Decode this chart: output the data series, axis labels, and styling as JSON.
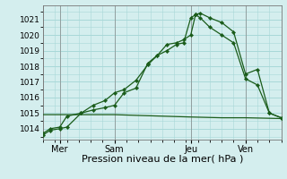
{
  "xlabel": "Pression niveau de la mer( hPa )",
  "bg_color": "#d4eeee",
  "grid_color": "#a8d8d8",
  "line_color": "#1a5c1a",
  "ylim": [
    1013.3,
    1021.9
  ],
  "xlim": [
    0,
    100
  ],
  "yticks": [
    1014,
    1015,
    1016,
    1017,
    1018,
    1019,
    1020,
    1021
  ],
  "xtick_positions": [
    7,
    30,
    62,
    85
  ],
  "xtick_labels": [
    "Mer",
    "Sam",
    "Jeu",
    "Ven"
  ],
  "vline_positions": [
    0,
    7,
    30,
    62,
    85,
    100
  ],
  "line1_x": [
    0,
    3,
    7,
    10,
    16,
    21,
    26,
    30,
    34,
    39,
    44,
    48,
    52,
    56,
    59,
    62,
    64,
    66,
    70,
    75,
    80,
    85,
    90,
    95,
    100
  ],
  "line1_y": [
    1013.6,
    1013.9,
    1014.0,
    1014.1,
    1015.0,
    1015.5,
    1015.8,
    1016.3,
    1016.5,
    1017.1,
    1018.1,
    1018.7,
    1019.0,
    1019.4,
    1019.5,
    1021.1,
    1021.3,
    1021.1,
    1020.5,
    1020.0,
    1019.5,
    1017.2,
    1016.8,
    1015.0,
    1014.7
  ],
  "line2_x": [
    0,
    3,
    7,
    10,
    16,
    21,
    26,
    30,
    34,
    39,
    44,
    48,
    52,
    56,
    59,
    62,
    64,
    66,
    70,
    75,
    80,
    85,
    90,
    95,
    100
  ],
  "line2_y": [
    1013.7,
    1014.0,
    1014.1,
    1014.8,
    1015.0,
    1015.2,
    1015.35,
    1015.5,
    1016.3,
    1016.6,
    1018.2,
    1018.7,
    1019.4,
    1019.5,
    1019.7,
    1020.0,
    1021.3,
    1021.4,
    1021.1,
    1020.8,
    1020.2,
    1017.5,
    1017.8,
    1015.0,
    1014.7
  ],
  "line3_x": [
    0,
    7,
    20,
    30,
    40,
    62,
    75,
    85,
    100
  ],
  "line3_y": [
    1014.9,
    1014.9,
    1014.9,
    1014.9,
    1014.85,
    1014.75,
    1014.7,
    1014.7,
    1014.65
  ],
  "xlabel_fontsize": 8,
  "ytick_fontsize": 6.5,
  "xtick_fontsize": 7
}
